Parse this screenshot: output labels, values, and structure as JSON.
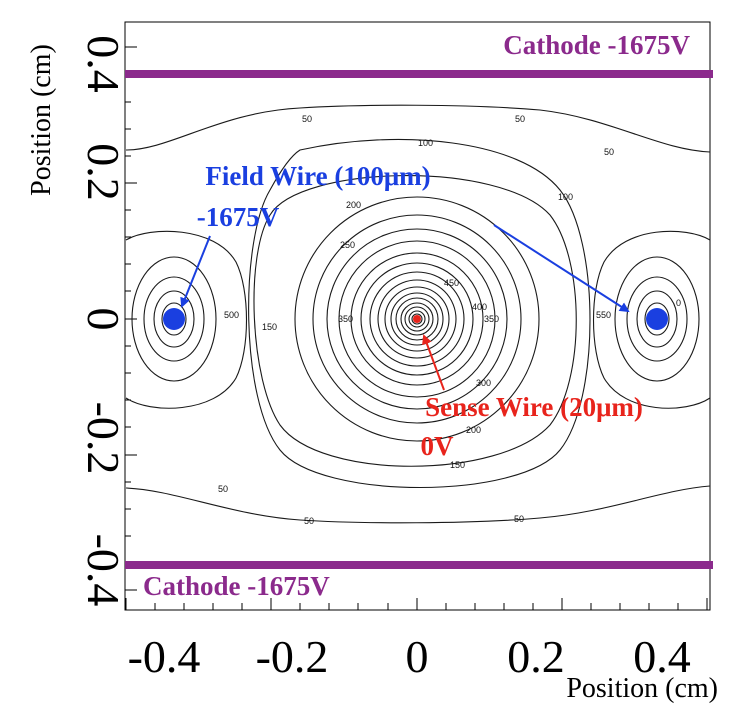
{
  "axes": {
    "xlabel": "Position (cm)",
    "ylabel": "Position (cm)",
    "x_ticks": [
      "-0.4",
      "-0.2",
      "0",
      "0.2",
      "0.4"
    ],
    "y_ticks": [
      "0.4",
      "0.2",
      "0",
      "-0.2",
      "-0.4"
    ]
  },
  "labels": {
    "cathode_top": "Cathode -1675V",
    "cathode_bottom": "Cathode -1675V",
    "field_wire_line1": "Field Wire (100μm)",
    "field_wire_line2": "-1675V",
    "sense_wire_line1": "Sense Wire (20μm)",
    "sense_wire_line2": "0V"
  },
  "contour_labels": {
    "c50_tl": "50",
    "c50_tr": "50",
    "c50_r": "50",
    "c100_t": "100",
    "c100_b": "100",
    "c150_l": "150",
    "c150_b": "150",
    "c200_t": "200",
    "c200_b": "200",
    "c250_t": "250",
    "c300_b": "300",
    "c350_l": "350",
    "c350_r": "350",
    "c400": "400",
    "c450": "450",
    "c500_l": "500",
    "c500_r": "550",
    "c0_r": "0",
    "c50_bl": "50",
    "c50_bm": "50",
    "c50_br": "50"
  },
  "colors": {
    "cathode": "#8b2a8c",
    "field_wire": "#1a3fe0",
    "sense_wire": "#e8241c",
    "contour": "#1a1a1a"
  }
}
